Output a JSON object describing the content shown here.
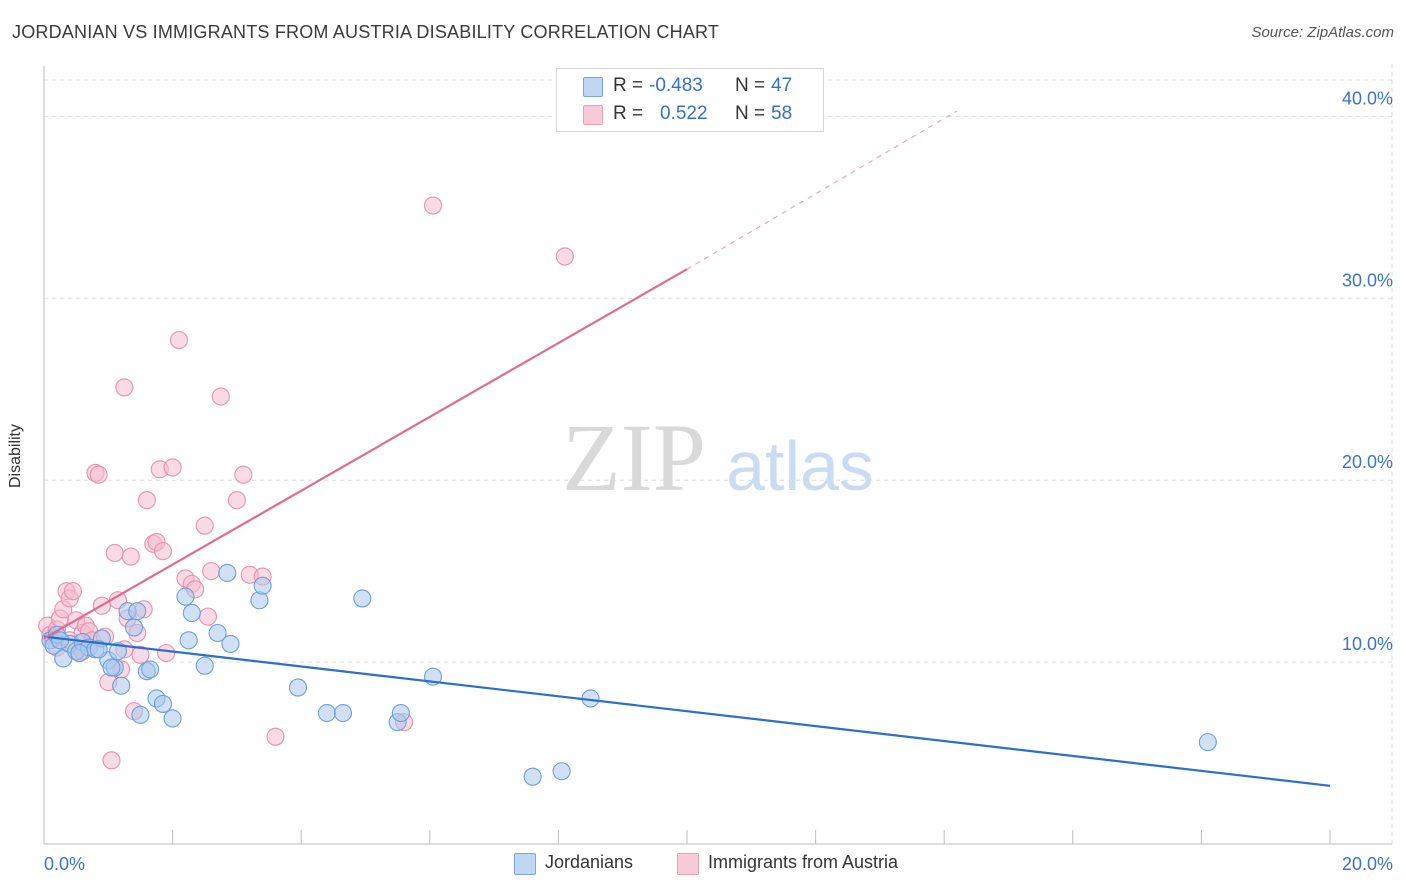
{
  "title": "JORDANIAN VS IMMIGRANTS FROM AUSTRIA DISABILITY CORRELATION CHART",
  "source": "Source: ZipAtlas.com",
  "watermark": {
    "zip": "ZIP",
    "atlas": "atlas"
  },
  "legend_top": {
    "rows": [
      {
        "r_label": "R =",
        "r_value": "-0.483",
        "n_label": "N =",
        "n_value": "47"
      },
      {
        "r_label": "R =",
        "r_value": "0.522",
        "n_label": "N =",
        "n_value": "58"
      }
    ]
  },
  "legend_bottom": [
    "Jordanians",
    "Immigrants from Austria"
  ],
  "colors": {
    "blue_fill": "#a9c8ef",
    "blue_stroke": "#6d9fdc",
    "blue_line": "#2a6fcf",
    "pink_fill": "#f6bccd",
    "pink_stroke": "#e892ad",
    "pink_line": "#e06a93",
    "axis_text": "#3a74c9",
    "grid": "#dcdcdc"
  },
  "chart_data": {
    "type": "scatter",
    "title": "JORDANIAN VS IMMIGRANTS FROM AUSTRIA DISABILITY CORRELATION CHART",
    "xlabel": "",
    "ylabel": "Disability",
    "xlim": [
      0,
      20
    ],
    "ylim": [
      0,
      42
    ],
    "x_tick_labels": [
      "0.0%",
      "20.0%"
    ],
    "y_ticks": [
      10,
      20,
      30,
      40
    ],
    "y_tick_labels": [
      "10.0%",
      "20.0%",
      "30.0%",
      "40.0%"
    ],
    "series": [
      {
        "name": "Jordanians",
        "r": -0.483,
        "n": 47,
        "trend": {
          "x": [
            0,
            20
          ],
          "y": [
            11.4,
            3.2
          ],
          "dashed_to": null
        },
        "points": [
          [
            0.1,
            11.2
          ],
          [
            0.15,
            10.9
          ],
          [
            0.2,
            11.5
          ],
          [
            0.3,
            10.2
          ],
          [
            0.4,
            11.0
          ],
          [
            0.5,
            10.6
          ],
          [
            0.6,
            11.1
          ],
          [
            0.7,
            10.8
          ],
          [
            0.8,
            10.7
          ],
          [
            0.9,
            11.3
          ],
          [
            1.0,
            10.1
          ],
          [
            1.1,
            9.7
          ],
          [
            1.15,
            10.6
          ],
          [
            1.2,
            8.7
          ],
          [
            1.3,
            12.8
          ],
          [
            1.4,
            11.9
          ],
          [
            1.45,
            12.8
          ],
          [
            1.5,
            7.1
          ],
          [
            1.6,
            9.5
          ],
          [
            1.75,
            8.0
          ],
          [
            1.85,
            7.7
          ],
          [
            2.0,
            6.9
          ],
          [
            2.2,
            13.6
          ],
          [
            2.25,
            11.2
          ],
          [
            2.3,
            12.7
          ],
          [
            2.5,
            9.8
          ],
          [
            2.7,
            11.6
          ],
          [
            2.85,
            14.9
          ],
          [
            2.9,
            11.0
          ],
          [
            3.35,
            13.4
          ],
          [
            3.4,
            14.2
          ],
          [
            3.95,
            8.6
          ],
          [
            4.4,
            7.2
          ],
          [
            4.65,
            7.2
          ],
          [
            4.95,
            13.5
          ],
          [
            5.5,
            6.7
          ],
          [
            5.55,
            7.2
          ],
          [
            6.05,
            9.2
          ],
          [
            7.6,
            3.7
          ],
          [
            8.05,
            4.0
          ],
          [
            8.5,
            8.0
          ],
          [
            18.1,
            5.6
          ],
          [
            0.25,
            11.2
          ],
          [
            0.55,
            10.5
          ],
          [
            0.85,
            10.7
          ],
          [
            1.65,
            9.6
          ],
          [
            1.05,
            9.7
          ]
        ]
      },
      {
        "name": "Immigrants from Austria",
        "r": 0.522,
        "n": 58,
        "trend": {
          "x": [
            0,
            10
          ],
          "y": [
            11.3,
            31.6
          ],
          "dashed_to": [
            14.2,
            40.3
          ]
        },
        "points": [
          [
            0.05,
            12.0
          ],
          [
            0.1,
            11.5
          ],
          [
            0.15,
            11.3
          ],
          [
            0.2,
            11.8
          ],
          [
            0.25,
            12.4
          ],
          [
            0.3,
            12.9
          ],
          [
            0.35,
            13.9
          ],
          [
            0.4,
            13.5
          ],
          [
            0.45,
            13.9
          ],
          [
            0.5,
            12.3
          ],
          [
            0.55,
            10.5
          ],
          [
            0.6,
            11.6
          ],
          [
            0.65,
            12.0
          ],
          [
            0.7,
            11.7
          ],
          [
            0.75,
            11.2
          ],
          [
            0.8,
            20.4
          ],
          [
            0.85,
            20.3
          ],
          [
            0.9,
            13.1
          ],
          [
            0.95,
            11.4
          ],
          [
            1.0,
            8.9
          ],
          [
            1.05,
            4.6
          ],
          [
            1.1,
            16.0
          ],
          [
            1.15,
            13.4
          ],
          [
            1.2,
            9.6
          ],
          [
            1.25,
            25.1
          ],
          [
            1.3,
            12.4
          ],
          [
            1.35,
            15.8
          ],
          [
            1.4,
            7.3
          ],
          [
            1.45,
            11.6
          ],
          [
            1.5,
            10.4
          ],
          [
            1.55,
            12.9
          ],
          [
            1.6,
            18.9
          ],
          [
            1.7,
            16.5
          ],
          [
            1.75,
            16.6
          ],
          [
            1.8,
            20.6
          ],
          [
            1.85,
            16.1
          ],
          [
            1.9,
            10.5
          ],
          [
            2.0,
            20.7
          ],
          [
            2.1,
            27.7
          ],
          [
            2.2,
            14.6
          ],
          [
            2.3,
            14.3
          ],
          [
            2.35,
            14.0
          ],
          [
            2.5,
            17.5
          ],
          [
            2.55,
            12.5
          ],
          [
            2.6,
            15.0
          ],
          [
            2.75,
            24.6
          ],
          [
            3.0,
            18.9
          ],
          [
            3.1,
            20.3
          ],
          [
            3.2,
            14.8
          ],
          [
            3.4,
            14.7
          ],
          [
            3.6,
            5.9
          ],
          [
            5.6,
            6.7
          ],
          [
            6.05,
            35.1
          ],
          [
            8.1,
            32.3
          ],
          [
            1.25,
            10.7
          ],
          [
            0.6,
            10.6
          ],
          [
            0.4,
            11.2
          ],
          [
            0.2,
            10.8
          ]
        ]
      }
    ]
  }
}
